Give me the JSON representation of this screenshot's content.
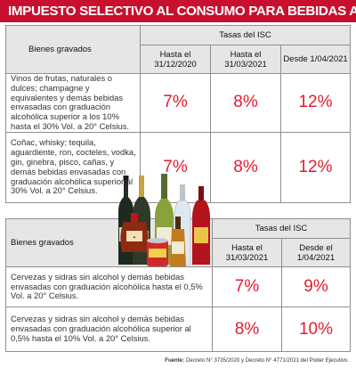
{
  "title": "IMPUESTO SELECTIVO AL CONSUMO PARA BEBIDAS ALCOHÓLICAS",
  "table1": {
    "col_label": "Bienes gravados",
    "group_label": "Tasas del ISC",
    "dates": [
      "Hasta el 31/12/2020",
      "Hasta el 31/03/2021",
      "Desde 1/04/2021"
    ],
    "rows": [
      {
        "desc": "Vinos de frutas, naturales o dulces; champagne y equivalentes y demás bebidas envasadas con graduación alcohólica superior a los 10% hasta el 30% Vol. a 20° Celsius.",
        "rates": [
          "7%",
          "8%",
          "12%"
        ]
      },
      {
        "desc": "Coñac, whisky; tequila, aguardiente, ron, cocteles, vodka, gin, ginebra, pisco, cañas, y demás bebidas envasadas con graduación alcohólica superior al 30% Vol. a 20° Celsius.",
        "rates": [
          "7%",
          "8%",
          "12%"
        ]
      }
    ]
  },
  "table2": {
    "col_label": "Bienes gravados",
    "group_label": "Tasas del ISC",
    "dates": [
      "Hasta el 31/03/2021",
      "Desde el 1/04/2021"
    ],
    "rows": [
      {
        "desc": "Cervezas y sidras sin alcohol y demás bebidas envasadas con graduación alcohólica hasta el 0,5% Vol. a 20° Celsius.",
        "rates": [
          "7%",
          "9%"
        ]
      },
      {
        "desc": "Cervezas y sidras sin alcohol y demás bebidas envasadas con graduación alcohólica superior al 0,5% hasta el 10% Vol. a 20° Celsius.",
        "rates": [
          "8%",
          "10%"
        ]
      }
    ]
  },
  "footer": {
    "label": "Fuente:",
    "text": "Decreto N° 3735/2020 y Decreto N° 4771/2021 del Poder Ejecutivo."
  },
  "colors": {
    "title_bg": "#c8102e",
    "rate": "#e41c2e",
    "header_bg": "#e6e6e6"
  }
}
